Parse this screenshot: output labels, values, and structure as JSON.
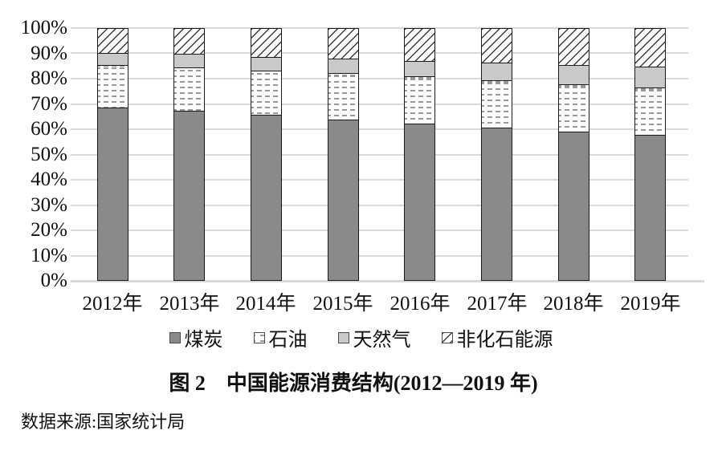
{
  "figure": {
    "title": "图 2　中国能源消费结构(2012—2019 年)",
    "source": "数据来源:国家统计局"
  },
  "colors": {
    "coal_fill": "#8a8a8a",
    "gas_fill": "#c9c9c9",
    "oil_dash": "#999999",
    "hatch_line": "#3a3a3a",
    "bar_border": "#1a1a1a",
    "gridline": "#d9d9d9",
    "text": "#111111"
  },
  "chart_data": {
    "type": "bar",
    "stacked": true,
    "unit": "%",
    "title": "图 2　中国能源消费结构(2012—2019 年)",
    "xlabel": "",
    "ylabel": "",
    "ylim": [
      0,
      100
    ],
    "grid": true,
    "legend_position": "bottom",
    "y_ticks": [
      "0%",
      "10%",
      "20%",
      "30%",
      "40%",
      "50%",
      "60%",
      "70%",
      "80%",
      "90%",
      "100%"
    ],
    "categories": [
      "2012年",
      "2013年",
      "2014年",
      "2015年",
      "2016年",
      "2017年",
      "2018年",
      "2019年"
    ],
    "series": [
      {
        "key": "coal",
        "name": "煤炭",
        "pattern": "solid_dark",
        "values": [
          68.5,
          67.4,
          65.8,
          63.8,
          62.2,
          60.6,
          59.0,
          57.7
        ]
      },
      {
        "key": "oil",
        "name": "石油",
        "pattern": "dashes",
        "values": [
          17.0,
          17.1,
          17.3,
          18.4,
          18.7,
          18.9,
          18.9,
          18.9
        ]
      },
      {
        "key": "gas",
        "name": "天然气",
        "pattern": "solid_light",
        "values": [
          4.8,
          5.3,
          5.6,
          5.8,
          6.1,
          6.9,
          7.6,
          8.1
        ]
      },
      {
        "key": "nonfossil",
        "name": "非化石能源",
        "pattern": "hatch",
        "values": [
          9.7,
          10.2,
          11.3,
          12.0,
          13.0,
          13.6,
          14.5,
          15.3
        ]
      }
    ]
  }
}
